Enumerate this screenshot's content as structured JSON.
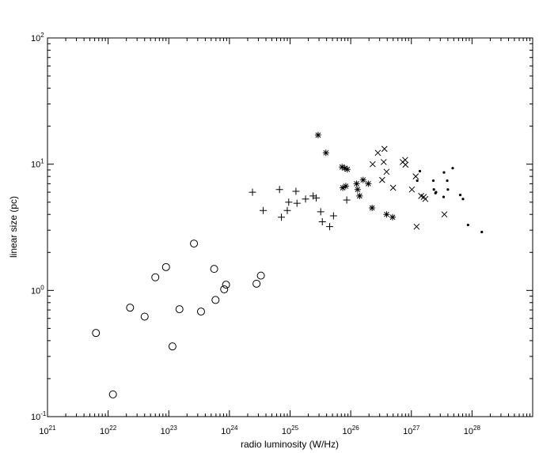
{
  "chart_data": {
    "type": "scatter",
    "title": "",
    "xlabel": "radio luminosity (W/Hz)",
    "ylabel": "linear size (pc)",
    "xscale": "log",
    "yscale": "log",
    "xlim": [
      1e+21,
      1e+29
    ],
    "ylim": [
      0.1,
      100
    ],
    "grid": false,
    "x_ticks": [
      {
        "value": 1e+21,
        "base": "10",
        "exp": "21"
      },
      {
        "value": 1e+22,
        "base": "10",
        "exp": "22"
      },
      {
        "value": 1e+23,
        "base": "10",
        "exp": "23"
      },
      {
        "value": 1e+24,
        "base": "10",
        "exp": "24"
      },
      {
        "value": 1e+25,
        "base": "10",
        "exp": "25"
      },
      {
        "value": 1e+26,
        "base": "10",
        "exp": "26"
      },
      {
        "value": 1e+27,
        "base": "10",
        "exp": "27"
      },
      {
        "value": 1e+28,
        "base": "10",
        "exp": "28"
      }
    ],
    "y_ticks": [
      {
        "value": 0.1,
        "base": "10",
        "exp": "-1"
      },
      {
        "value": 1,
        "base": "10",
        "exp": "0"
      },
      {
        "value": 10,
        "base": "10",
        "exp": "1"
      },
      {
        "value": 100,
        "base": "10",
        "exp": "2"
      }
    ],
    "series": [
      {
        "marker": "circle",
        "points": [
          [
            6.3e+21,
            0.46
          ],
          [
            1.2e+22,
            0.15
          ],
          [
            2.3e+22,
            0.73
          ],
          [
            4e+22,
            0.62
          ],
          [
            6e+22,
            1.27
          ],
          [
            9e+22,
            1.53
          ],
          [
            1.15e+23,
            0.36
          ],
          [
            1.5e+23,
            0.71
          ],
          [
            2.6e+23,
            2.35
          ],
          [
            3.4e+23,
            0.68
          ],
          [
            5.6e+23,
            1.48
          ],
          [
            5.9e+23,
            0.84
          ],
          [
            8.2e+23,
            1.02
          ],
          [
            8.8e+23,
            1.11
          ],
          [
            2.8e+24,
            1.13
          ],
          [
            3.3e+24,
            1.31
          ]
        ]
      },
      {
        "marker": "plus",
        "points": [
          [
            2.4e+24,
            6.0
          ],
          [
            3.6e+24,
            4.3
          ],
          [
            6.7e+24,
            6.3
          ],
          [
            7.2e+24,
            3.8
          ],
          [
            9e+24,
            4.3
          ],
          [
            9.5e+24,
            5.0
          ],
          [
            1.25e+25,
            6.1
          ],
          [
            1.3e+25,
            4.9
          ],
          [
            1.8e+25,
            5.3
          ],
          [
            2.4e+25,
            5.6
          ],
          [
            2.7e+25,
            5.4
          ],
          [
            3.2e+25,
            4.2
          ],
          [
            3.4e+25,
            3.5
          ],
          [
            4.5e+25,
            3.2
          ],
          [
            5.2e+25,
            3.9
          ],
          [
            8.6e+25,
            5.2
          ]
        ]
      },
      {
        "marker": "asterisk",
        "points": [
          [
            2.9e+25,
            17.0
          ],
          [
            3.9e+25,
            12.3
          ],
          [
            7.2e+25,
            9.5
          ],
          [
            8e+25,
            9.3
          ],
          [
            8.8e+25,
            9.1
          ],
          [
            7.4e+25,
            6.5
          ],
          [
            8.3e+25,
            6.7
          ],
          [
            1.25e+26,
            7.0
          ],
          [
            1.3e+26,
            6.3
          ],
          [
            1.4e+26,
            5.6
          ],
          [
            1.6e+26,
            7.5
          ],
          [
            1.95e+26,
            7.0
          ],
          [
            2.25e+26,
            4.5
          ],
          [
            3.9e+26,
            4.0
          ],
          [
            4.9e+26,
            3.8
          ]
        ]
      },
      {
        "marker": "cross",
        "points": [
          [
            2.3e+26,
            10.0
          ],
          [
            2.8e+26,
            12.3
          ],
          [
            3.3e+26,
            7.5
          ],
          [
            3.5e+26,
            10.4
          ],
          [
            3.6e+26,
            13.2
          ],
          [
            3.9e+26,
            8.7
          ],
          [
            5e+26,
            6.5
          ],
          [
            7.2e+26,
            10.4
          ],
          [
            7.9e+26,
            10.8
          ],
          [
            8e+26,
            9.9
          ],
          [
            1.02e+27,
            6.3
          ],
          [
            1.18e+27,
            8.0
          ],
          [
            1.22e+27,
            3.2
          ],
          [
            1.45e+27,
            5.6
          ],
          [
            1.6e+27,
            5.5
          ],
          [
            1.7e+27,
            5.3
          ],
          [
            3.5e+27,
            4.0
          ]
        ]
      },
      {
        "marker": "dot",
        "points": [
          [
            1.25e+27,
            7.4
          ],
          [
            1.38e+27,
            8.8
          ],
          [
            2.3e+27,
            7.4
          ],
          [
            2.35e+27,
            6.3
          ],
          [
            2.5e+27,
            5.9
          ],
          [
            2.55e+27,
            6.0
          ],
          [
            3.4e+27,
            5.5
          ],
          [
            3.45e+27,
            8.6
          ],
          [
            3.9e+27,
            7.4
          ],
          [
            4e+27,
            6.3
          ],
          [
            4.8e+27,
            9.3
          ],
          [
            6.4e+27,
            5.7
          ],
          [
            7.1e+27,
            5.3
          ],
          [
            8.6e+27,
            3.3
          ],
          [
            1.45e+28,
            2.9
          ]
        ]
      }
    ]
  }
}
